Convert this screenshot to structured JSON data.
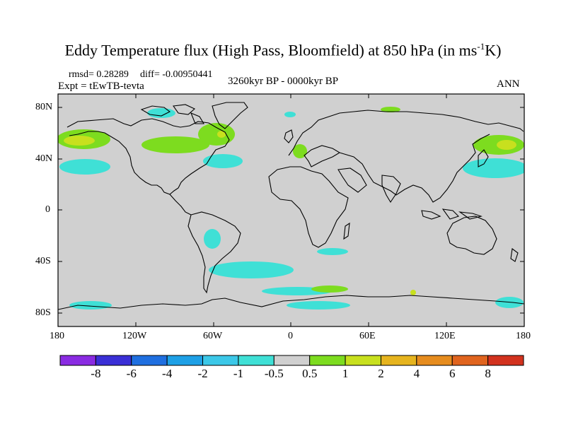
{
  "title": {
    "main": "Eddy Temperature flux (High Pass, Bloomfield) at 850 hPa (in ms",
    "sup": "-1",
    "tail": "K)"
  },
  "stats": {
    "rmsd": "rmsd= 0.28289",
    "diff": "diff= -0.00950441"
  },
  "experiment": "Expt = tEwTB-tevta",
  "period": "3260kyr BP - 0000kyr BP",
  "season": "ANN",
  "axes": {
    "lat_ticks": [
      "80N",
      "40N",
      "0",
      "40S",
      "80S"
    ],
    "lon_ticks": [
      "180",
      "120W",
      "60W",
      "0",
      "60E",
      "120E",
      "180"
    ]
  },
  "colorbar": {
    "labels": [
      "-8",
      "-6",
      "-4",
      "-2",
      "-1",
      "-0.5",
      "0.5",
      "1",
      "2",
      "4",
      "6",
      "8"
    ],
    "colors": [
      "#8a2be2",
      "#3a2fd6",
      "#1f6fe0",
      "#1ea0e6",
      "#3cc8e8",
      "#3fe0d6",
      "#d0d0d0",
      "#7ddc1f",
      "#c8e01e",
      "#e6b41e",
      "#e68c1e",
      "#e0641e",
      "#d2321e"
    ]
  },
  "map": {
    "background": "#d0d0d0"
  }
}
